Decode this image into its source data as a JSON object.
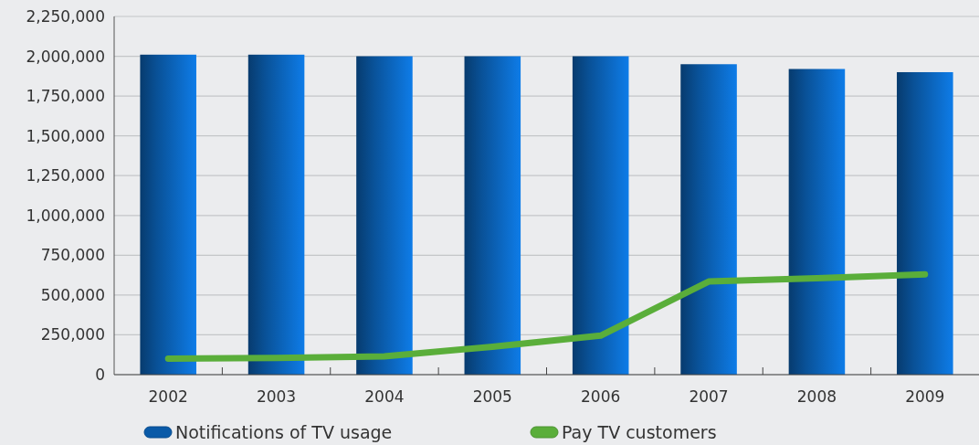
{
  "chart_data": {
    "type": "bar",
    "categories": [
      "2002",
      "2003",
      "2004",
      "2005",
      "2006",
      "2007",
      "2008",
      "2009"
    ],
    "series": [
      {
        "name": "Notifications of TV usage",
        "color": "#0a5aa8",
        "values": [
          2010000,
          2010000,
          2000000,
          2000000,
          2000000,
          1950000,
          1920000,
          1900000
        ]
      },
      {
        "name": "Pay TV customers",
        "type": "line",
        "color": "#5aae3a",
        "values": [
          100000,
          105000,
          115000,
          175000,
          245000,
          585000,
          605000,
          630000
        ]
      }
    ],
    "ylim": [
      0,
      2250000
    ],
    "yticks": [
      {
        "value": 0,
        "label": "0"
      },
      {
        "value": 250000,
        "label": "250,000"
      },
      {
        "value": 500000,
        "label": "500,000"
      },
      {
        "value": 750000,
        "label": "750,000"
      },
      {
        "value": 1000000,
        "label": "1,000,000"
      },
      {
        "value": 1250000,
        "label": "1,250,000"
      },
      {
        "value": 1500000,
        "label": "1,500,000"
      },
      {
        "value": 1750000,
        "label": "1,750,000"
      },
      {
        "value": 2000000,
        "label": "2,000,000"
      },
      {
        "value": 2250000,
        "label": "2,250,000"
      }
    ],
    "grid": "y",
    "legend": "bottom left"
  }
}
